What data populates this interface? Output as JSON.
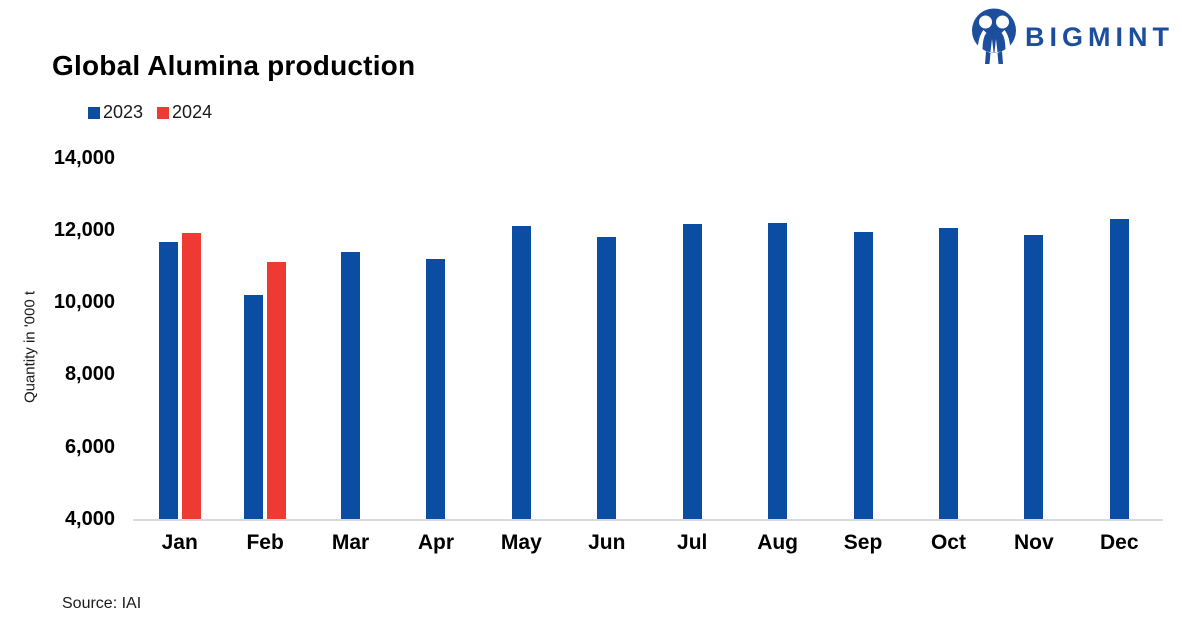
{
  "header": {
    "title": "Global Alumina production",
    "logo_text": "BIGMINT"
  },
  "colors": {
    "series_2023": "#0b4da2",
    "series_2024": "#ee3a33",
    "logo_blue": "#1d4e9e",
    "axis_line": "#d9d9d9"
  },
  "chart_data": {
    "type": "bar",
    "title": "Global Alumina production",
    "xlabel": "",
    "ylabel": "Quantity in '000 t",
    "ylim": [
      4000,
      14000
    ],
    "y_ticks": [
      4000,
      6000,
      8000,
      10000,
      12000,
      14000
    ],
    "grid": false,
    "legend_position": "top-left",
    "categories": [
      "Jan",
      "Feb",
      "Mar",
      "Apr",
      "May",
      "Jun",
      "Jul",
      "Aug",
      "Sep",
      "Oct",
      "Nov",
      "Dec"
    ],
    "series": [
      {
        "name": "2023",
        "color": "#0b4da2",
        "values": [
          11650,
          10200,
          11400,
          11200,
          12100,
          11800,
          12150,
          12200,
          11950,
          12050,
          11850,
          12300
        ]
      },
      {
        "name": "2024",
        "color": "#ee3a33",
        "values": [
          11900,
          11100,
          null,
          null,
          null,
          null,
          null,
          null,
          null,
          null,
          null,
          null
        ]
      }
    ]
  },
  "footer": {
    "source": "Source: IAI"
  }
}
